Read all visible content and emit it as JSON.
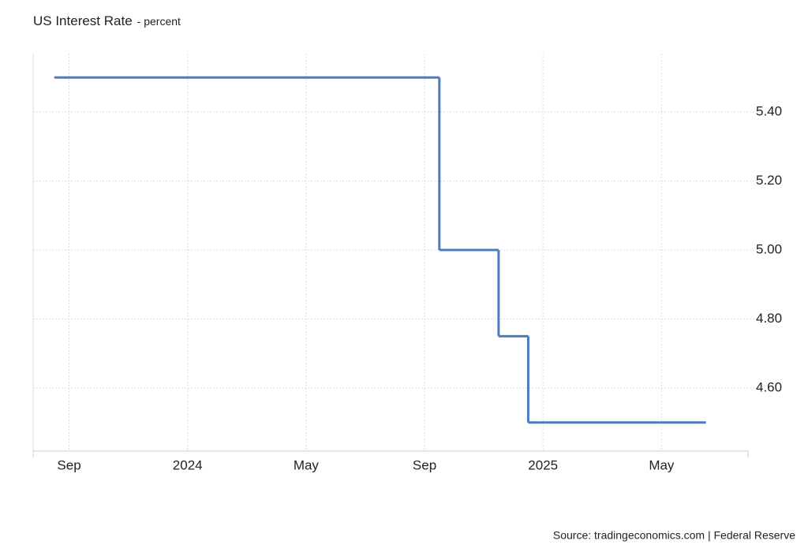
{
  "chart_data": {
    "type": "step-line",
    "title": "US Interest Rate",
    "subtitle": "- percent",
    "source": "Source: tradingeconomics.com | Federal Reserve",
    "series": [
      {
        "name": "US Interest Rate",
        "color": "#4a7dbf",
        "x": [
          "2023-08",
          "2024-09",
          "2024-11",
          "2024-12",
          "2025-06"
        ],
        "values": [
          5.5,
          5.0,
          4.75,
          4.5,
          4.5
        ]
      }
    ],
    "xlim": [
      "2023-08",
      "2025-08"
    ],
    "xticks": [
      {
        "value": "2023-09",
        "label": "Sep"
      },
      {
        "value": "2024-01",
        "label": "2024"
      },
      {
        "value": "2024-05",
        "label": "May"
      },
      {
        "value": "2024-09",
        "label": "Sep"
      },
      {
        "value": "2025-01",
        "label": "2025"
      },
      {
        "value": "2025-05",
        "label": "May"
      }
    ],
    "ylim": [
      4.417,
      5.569
    ],
    "yticks": [
      {
        "value": 4.6,
        "label": "4.60"
      },
      {
        "value": 4.8,
        "label": "4.80"
      },
      {
        "value": 5.0,
        "label": "5.00"
      },
      {
        "value": 5.2,
        "label": "5.20"
      },
      {
        "value": 5.4,
        "label": "5.40"
      }
    ],
    "grid": true
  }
}
